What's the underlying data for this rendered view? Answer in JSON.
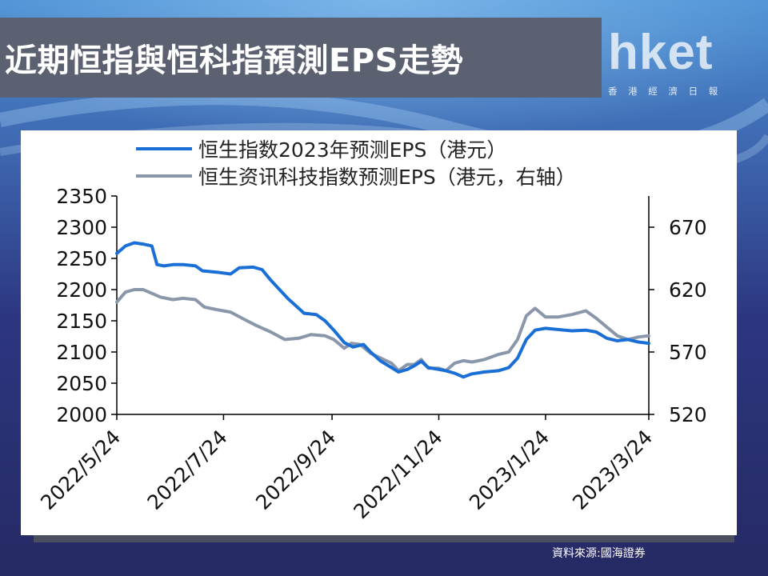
{
  "title": "近期恒指與恒科指預測EPS走勢",
  "logo": {
    "word": "hket",
    "subtitle": "香 港 經 濟 日 報"
  },
  "source": "資料來源:國海證券",
  "colors": {
    "series1": "#1a6fd6",
    "series2": "#8a97ab",
    "title_bar": "#5b6170"
  },
  "chart_data": {
    "type": "line",
    "legend_position": "top-left",
    "grid": false,
    "x_ticks": [
      "2022/5/24",
      "2022/7/24",
      "2022/9/24",
      "2022/11/24",
      "2023/1/24",
      "2023/3/24"
    ],
    "x_range": [
      "2022-05-24",
      "2023-03-24"
    ],
    "y_left": {
      "range": [
        2000,
        2350
      ],
      "ticks": [
        "2000",
        "2050",
        "2100",
        "2150",
        "2200",
        "2250",
        "2300",
        "2350"
      ]
    },
    "y_right": {
      "range": [
        520,
        695
      ],
      "ticks": [
        "520",
        "570",
        "620",
        "670"
      ]
    },
    "series": [
      {
        "name": "恒生指数2023年预测EPS（港元）",
        "axis": "left",
        "points": [
          [
            "2022-05-24",
            2258
          ],
          [
            "2022-05-29",
            2270
          ],
          [
            "2022-06-03",
            2275
          ],
          [
            "2022-06-08",
            2273
          ],
          [
            "2022-06-13",
            2270
          ],
          [
            "2022-06-16",
            2240
          ],
          [
            "2022-06-20",
            2238
          ],
          [
            "2022-06-25",
            2240
          ],
          [
            "2022-07-01",
            2240
          ],
          [
            "2022-07-08",
            2238
          ],
          [
            "2022-07-12",
            2230
          ],
          [
            "2022-07-20",
            2228
          ],
          [
            "2022-07-28",
            2225
          ],
          [
            "2022-08-02",
            2235
          ],
          [
            "2022-08-10",
            2236
          ],
          [
            "2022-08-15",
            2232
          ],
          [
            "2022-08-20",
            2215
          ],
          [
            "2022-08-25",
            2200
          ],
          [
            "2022-08-30",
            2185
          ],
          [
            "2022-09-03",
            2175
          ],
          [
            "2022-09-08",
            2162
          ],
          [
            "2022-09-15",
            2160
          ],
          [
            "2022-09-20",
            2150
          ],
          [
            "2022-09-25",
            2135
          ],
          [
            "2022-10-01",
            2115
          ],
          [
            "2022-10-06",
            2108
          ],
          [
            "2022-10-12",
            2112
          ],
          [
            "2022-10-16",
            2100
          ],
          [
            "2022-10-22",
            2085
          ],
          [
            "2022-10-28",
            2075
          ],
          [
            "2022-11-01",
            2068
          ],
          [
            "2022-11-06",
            2072
          ],
          [
            "2022-11-10",
            2078
          ],
          [
            "2022-11-14",
            2085
          ],
          [
            "2022-11-18",
            2075
          ],
          [
            "2022-11-24",
            2072
          ],
          [
            "2022-11-28",
            2070
          ],
          [
            "2022-12-03",
            2066
          ],
          [
            "2022-12-08",
            2060
          ],
          [
            "2022-12-13",
            2065
          ],
          [
            "2022-12-20",
            2068
          ],
          [
            "2022-12-28",
            2070
          ],
          [
            "2023-01-03",
            2075
          ],
          [
            "2023-01-08",
            2090
          ],
          [
            "2023-01-13",
            2120
          ],
          [
            "2023-01-18",
            2135
          ],
          [
            "2023-01-24",
            2138
          ],
          [
            "2023-01-31",
            2136
          ],
          [
            "2023-02-08",
            2134
          ],
          [
            "2023-02-16",
            2135
          ],
          [
            "2023-02-22",
            2132
          ],
          [
            "2023-02-28",
            2122
          ],
          [
            "2023-03-06",
            2118
          ],
          [
            "2023-03-12",
            2120
          ],
          [
            "2023-03-18",
            2116
          ],
          [
            "2023-03-24",
            2114
          ]
        ]
      },
      {
        "name": "恒生资讯科技指数预测EPS（港元，右轴）",
        "axis": "right",
        "points": [
          [
            "2022-05-24",
            610
          ],
          [
            "2022-05-29",
            618
          ],
          [
            "2022-06-03",
            620
          ],
          [
            "2022-06-08",
            620
          ],
          [
            "2022-06-13",
            617
          ],
          [
            "2022-06-18",
            614
          ],
          [
            "2022-06-25",
            612
          ],
          [
            "2022-07-01",
            613
          ],
          [
            "2022-07-08",
            612
          ],
          [
            "2022-07-13",
            606
          ],
          [
            "2022-07-20",
            604
          ],
          [
            "2022-07-28",
            602
          ],
          [
            "2022-08-05",
            596
          ],
          [
            "2022-08-12",
            591
          ],
          [
            "2022-08-20",
            586
          ],
          [
            "2022-08-28",
            580
          ],
          [
            "2022-09-05",
            581
          ],
          [
            "2022-09-12",
            584
          ],
          [
            "2022-09-20",
            583
          ],
          [
            "2022-09-25",
            580
          ],
          [
            "2022-10-01",
            573
          ],
          [
            "2022-10-05",
            577
          ],
          [
            "2022-10-10",
            576
          ],
          [
            "2022-10-16",
            569
          ],
          [
            "2022-10-22",
            565
          ],
          [
            "2022-10-28",
            561
          ],
          [
            "2022-11-01",
            555
          ],
          [
            "2022-11-06",
            560
          ],
          [
            "2022-11-10",
            560
          ],
          [
            "2022-11-14",
            564
          ],
          [
            "2022-11-18",
            557
          ],
          [
            "2022-11-24",
            557
          ],
          [
            "2022-11-28",
            555
          ],
          [
            "2022-12-03",
            561
          ],
          [
            "2022-12-08",
            563
          ],
          [
            "2022-12-13",
            562
          ],
          [
            "2022-12-20",
            564
          ],
          [
            "2022-12-28",
            568
          ],
          [
            "2023-01-03",
            570
          ],
          [
            "2023-01-08",
            580
          ],
          [
            "2023-01-13",
            599
          ],
          [
            "2023-01-18",
            605
          ],
          [
            "2023-01-24",
            598
          ],
          [
            "2023-01-31",
            598
          ],
          [
            "2023-02-08",
            600
          ],
          [
            "2023-02-16",
            603
          ],
          [
            "2023-02-22",
            597
          ],
          [
            "2023-02-28",
            590
          ],
          [
            "2023-03-06",
            583
          ],
          [
            "2023-03-12",
            580
          ],
          [
            "2023-03-18",
            582
          ],
          [
            "2023-03-24",
            583
          ]
        ]
      }
    ]
  }
}
